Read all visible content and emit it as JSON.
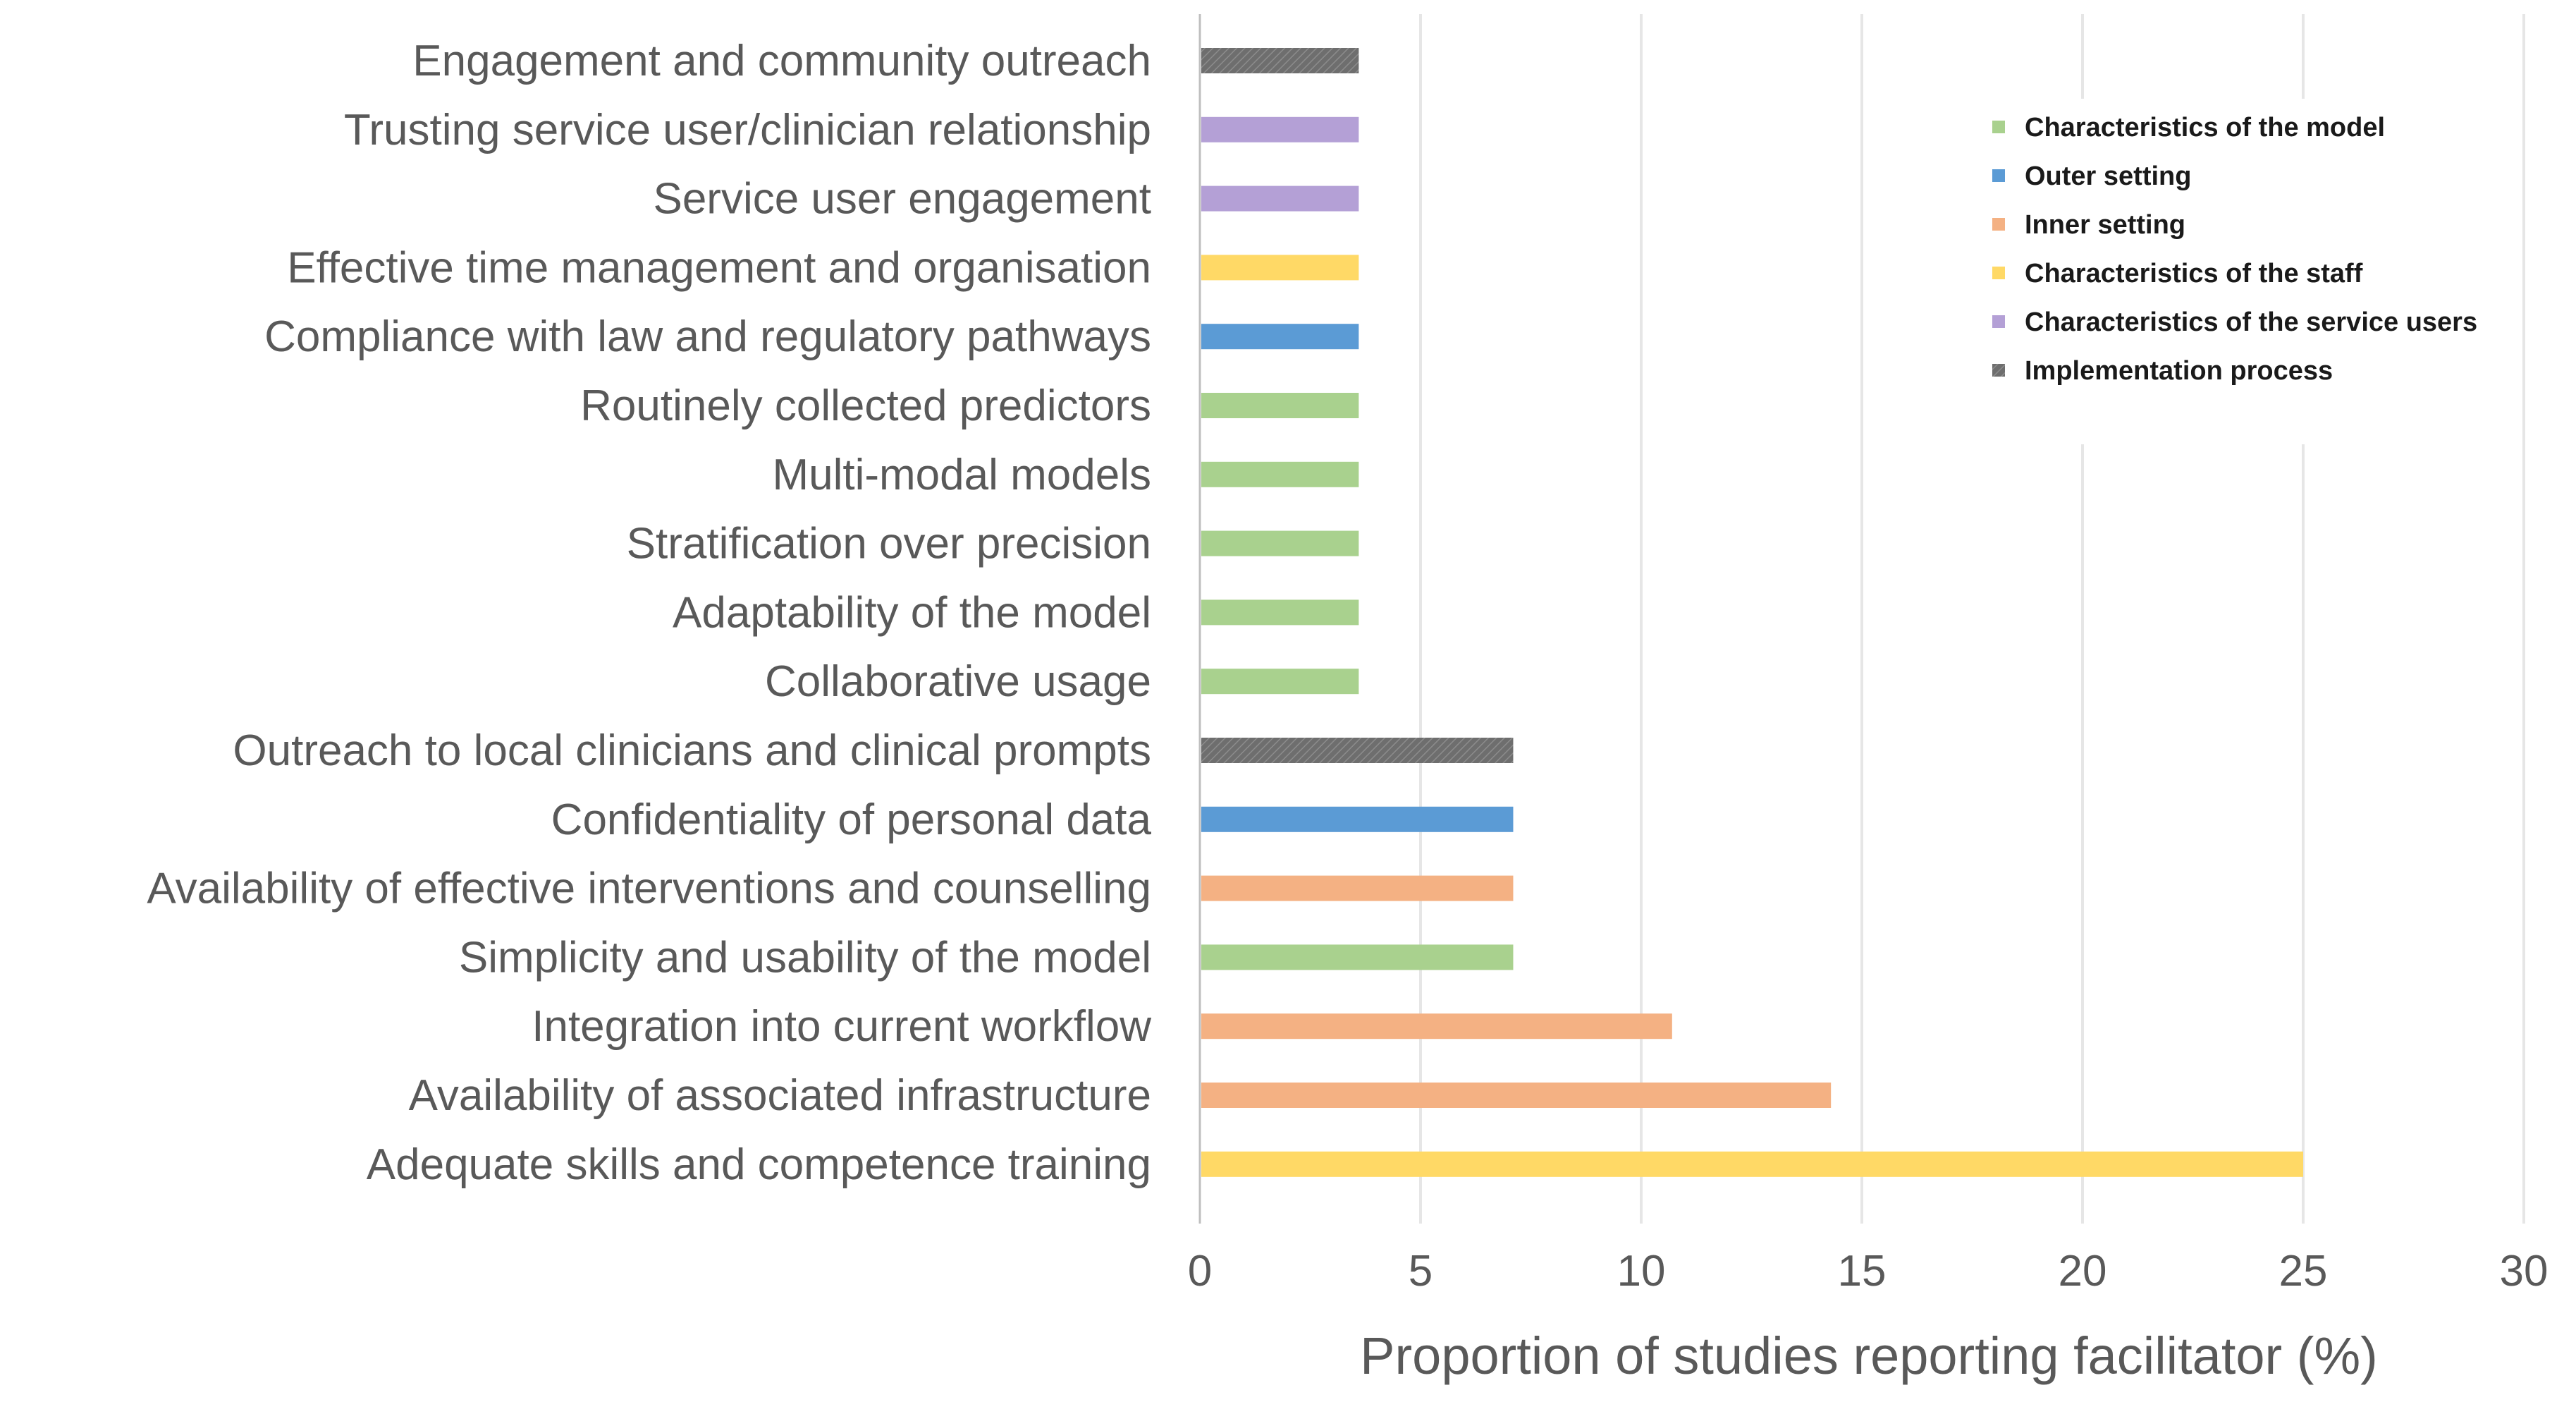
{
  "chart_data": {
    "type": "bar",
    "orientation": "horizontal",
    "xlabel": "Proportion of studies reporting facilitator (%)",
    "ylabel": "",
    "xlim": [
      0,
      30
    ],
    "xticks": [
      "0",
      "5",
      "10",
      "15",
      "20",
      "25",
      "30"
    ],
    "grid": "vertical",
    "legend_position": "top-right",
    "groups": [
      {
        "name": "Characteristics of the model",
        "color": "#a9d18e"
      },
      {
        "name": "Outer setting",
        "color": "#5b9bd5"
      },
      {
        "name": "Inner setting",
        "color": "#f4b183"
      },
      {
        "name": "Characteristics of the staff",
        "color": "#ffd966"
      },
      {
        "name": "Characteristics of the service users",
        "color": "#b4a0d6"
      },
      {
        "name": "Implementation process",
        "color": "#707070"
      }
    ],
    "bars": [
      {
        "label": "Engagement and community outreach",
        "value": 3.6,
        "group": "Implementation process"
      },
      {
        "label": "Trusting service user/clinician relationship",
        "value": 3.6,
        "group": "Characteristics of the service users"
      },
      {
        "label": "Service user engagement",
        "value": 3.6,
        "group": "Characteristics of the service users"
      },
      {
        "label": "Effective time management and organisation",
        "value": 3.6,
        "group": "Characteristics of the staff"
      },
      {
        "label": "Compliance with law and regulatory pathways",
        "value": 3.6,
        "group": "Outer setting"
      },
      {
        "label": "Routinely collected predictors",
        "value": 3.6,
        "group": "Characteristics of the model"
      },
      {
        "label": "Multi-modal models",
        "value": 3.6,
        "group": "Characteristics of the model"
      },
      {
        "label": "Stratification over precision",
        "value": 3.6,
        "group": "Characteristics of the model"
      },
      {
        "label": "Adaptability of the model",
        "value": 3.6,
        "group": "Characteristics of the model"
      },
      {
        "label": "Collaborative usage",
        "value": 3.6,
        "group": "Characteristics of the model"
      },
      {
        "label": "Outreach to local clinicians and clinical prompts",
        "value": 7.1,
        "group": "Implementation process"
      },
      {
        "label": "Confidentiality of personal data",
        "value": 7.1,
        "group": "Outer setting"
      },
      {
        "label": "Availability of effective interventions and counselling",
        "value": 7.1,
        "group": "Inner setting"
      },
      {
        "label": "Simplicity and usability of the model",
        "value": 7.1,
        "group": "Characteristics of the model"
      },
      {
        "label": "Integration into current workflow",
        "value": 10.7,
        "group": "Inner setting"
      },
      {
        "label": "Availability of associated infrastructure",
        "value": 14.3,
        "group": "Inner setting"
      },
      {
        "label": "Adequate skills and competence training",
        "value": 25,
        "group": "Characteristics of the staff"
      }
    ]
  }
}
